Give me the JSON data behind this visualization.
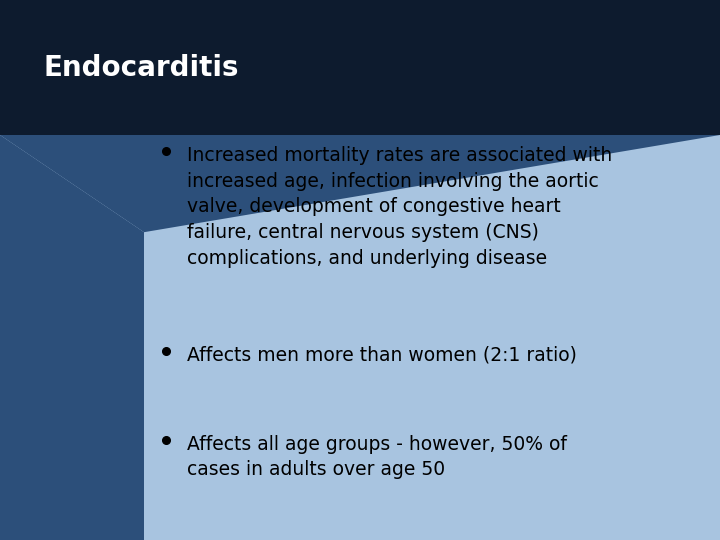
{
  "title": "Endocarditis",
  "title_color": "#FFFFFF",
  "title_fontsize": 20,
  "background_main": "#A8C4E0",
  "background_dark": "#0D1B2E",
  "background_mid": "#2C4F7A",
  "bullet_points": [
    "Increased mortality rates are associated with\nincreased age, infection involving the aortic\nvalve, development of congestive heart\nfailure, central nervous system (CNS)\ncomplications, and underlying disease",
    "Affects men more than women (2:1 ratio)",
    "Affects all age groups - however, 50% of\ncases in adults over age 50"
  ],
  "bullet_color": "#000000",
  "bullet_fontsize": 13.5,
  "figwidth": 7.2,
  "figheight": 5.4,
  "dpi": 100
}
